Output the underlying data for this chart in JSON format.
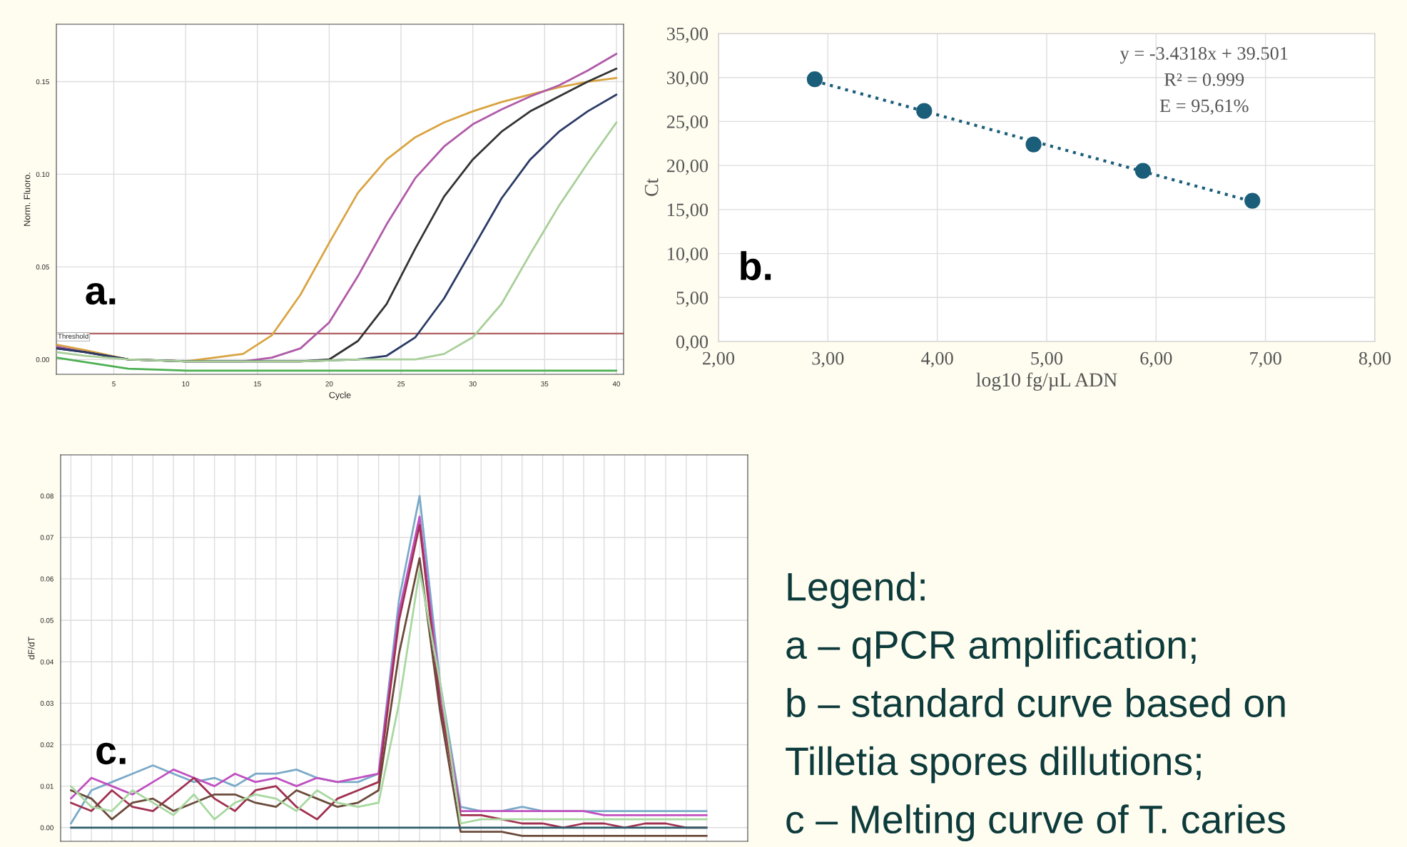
{
  "chart_data": [
    {
      "type": "line",
      "xlabel": "Cycle",
      "ylabel": "Norm. Fluoro.",
      "annotations": [
        "a."
      ],
      "xlim": [
        1,
        40.5
      ],
      "ylim": [
        -0.008,
        0.181
      ],
      "xticks": [
        5,
        10,
        15,
        20,
        25,
        30,
        35,
        40
      ],
      "yticks": [
        {
          "value": 0,
          "label": "0.00"
        },
        {
          "value": 0.05,
          "label": "0.05"
        },
        {
          "value": 0.1,
          "label": "0.10"
        },
        {
          "value": 0.15,
          "label": "0.15"
        }
      ],
      "grid": true,
      "legend": false,
      "marker": "none",
      "line_style": "solid",
      "ref_lines": [
        {
          "axis": "y",
          "value": 0.014,
          "label": "Threshold",
          "color": "#b06060"
        }
      ],
      "series": [
        {
          "color": "#d9a441",
          "x": [
            1,
            3,
            6,
            10,
            14,
            16,
            18,
            20,
            22,
            24,
            26,
            28,
            30,
            32,
            34,
            36,
            38,
            40
          ],
          "values": [
            0.008,
            0.005,
            0.0,
            -0.001,
            0.003,
            0.013,
            0.035,
            0.063,
            0.09,
            0.108,
            0.12,
            0.128,
            0.134,
            0.139,
            0.143,
            0.147,
            0.15,
            0.152
          ]
        },
        {
          "color": "#b05aa8",
          "x": [
            1,
            3,
            6,
            10,
            14,
            16,
            18,
            20,
            22,
            24,
            26,
            28,
            30,
            32,
            34,
            36,
            38,
            40
          ],
          "values": [
            0.007,
            0.004,
            0.0,
            -0.001,
            -0.001,
            0.001,
            0.006,
            0.02,
            0.045,
            0.073,
            0.098,
            0.115,
            0.127,
            0.135,
            0.142,
            0.148,
            0.156,
            0.165
          ]
        },
        {
          "color": "#333333",
          "x": [
            1,
            3,
            6,
            10,
            14,
            18,
            20,
            22,
            24,
            26,
            28,
            30,
            32,
            34,
            36,
            38,
            40
          ],
          "values": [
            0.006,
            0.004,
            0.0,
            -0.001,
            -0.001,
            -0.001,
            0.0,
            0.01,
            0.03,
            0.06,
            0.088,
            0.108,
            0.123,
            0.134,
            0.142,
            0.15,
            0.157
          ]
        },
        {
          "color": "#2b3a67",
          "x": [
            1,
            3,
            6,
            10,
            14,
            18,
            22,
            24,
            26,
            28,
            30,
            32,
            34,
            36,
            38,
            40
          ],
          "values": [
            0.006,
            0.004,
            0.0,
            -0.001,
            -0.001,
            -0.001,
            0.0,
            0.002,
            0.012,
            0.033,
            0.06,
            0.087,
            0.108,
            0.123,
            0.134,
            0.143
          ]
        },
        {
          "color": "#a8cf98",
          "x": [
            1,
            3,
            6,
            10,
            14,
            18,
            22,
            26,
            28,
            30,
            32,
            34,
            36,
            38,
            40
          ],
          "values": [
            0.004,
            0.002,
            0.0,
            -0.001,
            -0.001,
            -0.001,
            0.0,
            0.0,
            0.003,
            0.012,
            0.03,
            0.057,
            0.083,
            0.106,
            0.128
          ]
        },
        {
          "color": "#4caf50",
          "x": [
            1,
            6,
            10,
            40
          ],
          "values": [
            0.001,
            -0.005,
            -0.006,
            -0.006
          ]
        }
      ]
    },
    {
      "type": "scatter",
      "xlabel": "log10 fg/µL ADN",
      "ylabel": "Ct",
      "annotations": [
        "b.",
        "y = -3.4318x + 39.501",
        "R² = 0.999",
        "E = 95,61%"
      ],
      "xlim": [
        2,
        8
      ],
      "ylim": [
        0,
        35
      ],
      "xticks": [
        {
          "value": 2,
          "label": "2,00"
        },
        {
          "value": 3,
          "label": "3,00"
        },
        {
          "value": 4,
          "label": "4,00"
        },
        {
          "value": 5,
          "label": "5,00"
        },
        {
          "value": 6,
          "label": "6,00"
        },
        {
          "value": 7,
          "label": "7,00"
        },
        {
          "value": 8,
          "label": "8,00"
        }
      ],
      "yticks": [
        {
          "value": 0,
          "label": "0,00"
        },
        {
          "value": 5,
          "label": "5,00"
        },
        {
          "value": 10,
          "label": "10,00"
        },
        {
          "value": 15,
          "label": "15,00"
        },
        {
          "value": 20,
          "label": "20,00"
        },
        {
          "value": 25,
          "label": "25,00"
        },
        {
          "value": 30,
          "label": "30,00"
        },
        {
          "value": 35,
          "label": "35,00"
        }
      ],
      "grid": true,
      "legend": false,
      "x": [
        2.88,
        3.88,
        4.88,
        5.88,
        6.88
      ],
      "series": [
        {
          "color": "#1b5e7a",
          "marker": "circle",
          "values": [
            29.8,
            26.2,
            22.4,
            19.4,
            16.0
          ]
        },
        {
          "type": "line",
          "color": "#1b5e7a",
          "line_style": "dotted",
          "marker": "none",
          "x": [
            2.88,
            6.88
          ],
          "values": [
            29.6,
            15.9
          ]
        }
      ]
    },
    {
      "type": "line",
      "ylabel": "dF/dT",
      "annotations": [
        "c."
      ],
      "tick_labels": "y",
      "ylim": [
        -0.0033,
        0.0899
      ],
      "yticks": [
        {
          "value": 0,
          "label": "0.00"
        },
        {
          "value": 0.01,
          "label": "0.01"
        },
        {
          "value": 0.02,
          "label": "0.02"
        },
        {
          "value": 0.03,
          "label": "0.03"
        },
        {
          "value": 0.04,
          "label": "0.04"
        },
        {
          "value": 0.05,
          "label": "0.05"
        },
        {
          "value": 0.06,
          "label": "0.06"
        },
        {
          "value": 0.07,
          "label": "0.07"
        },
        {
          "value": 0.08,
          "label": "0.08"
        }
      ],
      "grid": true,
      "legend": false,
      "marker": "none",
      "line_style": "solid",
      "categories": [
        null,
        null,
        null,
        null,
        null,
        null,
        null,
        null,
        null,
        null,
        null,
        null,
        null,
        null,
        null,
        null,
        null,
        null,
        null,
        null,
        null,
        null,
        null,
        null,
        null,
        null,
        null,
        null,
        null,
        null,
        null,
        null
      ],
      "series": [
        {
          "color": "#7aaac8",
          "values": [
            0.001,
            0.009,
            0.011,
            0.013,
            0.015,
            0.013,
            0.011,
            0.012,
            0.01,
            0.013,
            0.013,
            0.014,
            0.012,
            0.011,
            0.011,
            0.013,
            0.055,
            0.08,
            0.035,
            0.005,
            0.004,
            0.004,
            0.005,
            0.004,
            0.004,
            0.004,
            0.004,
            0.004,
            0.004,
            0.004,
            0.004,
            0.004
          ]
        },
        {
          "color": "#c050c0",
          "values": [
            0.007,
            0.012,
            0.01,
            0.008,
            0.011,
            0.014,
            0.012,
            0.01,
            0.013,
            0.011,
            0.012,
            0.01,
            0.012,
            0.011,
            0.012,
            0.013,
            0.052,
            0.075,
            0.033,
            0.004,
            0.004,
            0.004,
            0.004,
            0.004,
            0.004,
            0.004,
            0.003,
            0.003,
            0.003,
            0.003,
            0.003,
            0.003
          ]
        },
        {
          "color": "#a03050",
          "values": [
            0.006,
            0.004,
            0.009,
            0.005,
            0.004,
            0.008,
            0.012,
            0.007,
            0.004,
            0.009,
            0.01,
            0.005,
            0.002,
            0.007,
            0.009,
            0.011,
            0.05,
            0.073,
            0.03,
            0.003,
            0.003,
            0.002,
            0.001,
            0.001,
            0.0,
            0.001,
            0.001,
            0.0,
            0.001,
            0.001,
            0.0,
            0.0
          ]
        },
        {
          "color": "#6b4a3a",
          "values": [
            0.009,
            0.007,
            0.002,
            0.006,
            0.007,
            0.004,
            0.006,
            0.008,
            0.008,
            0.006,
            0.005,
            0.009,
            0.007,
            0.005,
            0.006,
            0.009,
            0.042,
            0.065,
            0.028,
            -0.001,
            -0.001,
            -0.001,
            -0.002,
            -0.002,
            -0.002,
            -0.002,
            -0.002,
            -0.002,
            -0.002,
            -0.002,
            -0.002,
            -0.002
          ]
        },
        {
          "color": "#a8d8a0",
          "values": [
            0.01,
            0.005,
            0.004,
            0.009,
            0.006,
            0.003,
            0.008,
            0.002,
            0.006,
            0.008,
            0.007,
            0.004,
            0.009,
            0.006,
            0.005,
            0.006,
            0.03,
            0.062,
            0.035,
            0.001,
            0.002,
            0.002,
            0.002,
            0.002,
            0.002,
            0.002,
            0.002,
            0.002,
            0.002,
            0.002,
            0.002,
            0.002
          ]
        },
        {
          "color": "#2f5f6a",
          "values": [
            0.0,
            0.0,
            0.0,
            0.0,
            0.0,
            0.0,
            0.0,
            0.0,
            0.0,
            0.0,
            0.0,
            0.0,
            0.0,
            0.0,
            0.0,
            0.0,
            0.0,
            0.0,
            0.0,
            0.0,
            0.0,
            0.0,
            0.0,
            0.0,
            0.0,
            0.0,
            0.0,
            0.0,
            0.0,
            0.0,
            0.0,
            0.0
          ]
        }
      ]
    },
    {
      "type": "other",
      "title": "Legend:",
      "annotations": [
        "a – qPCR amplification;",
        "b – standard curve based on",
        "Tilletia spores dillutions;",
        "c – Melting curve of T. caries"
      ]
    }
  ]
}
